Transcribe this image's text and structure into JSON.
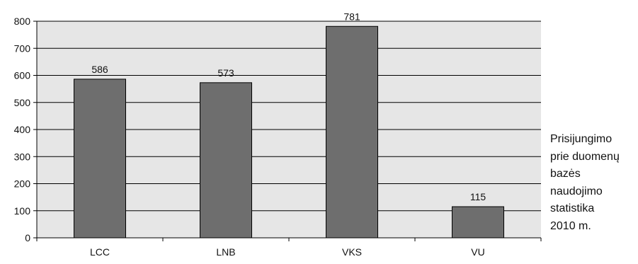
{
  "chart_data": {
    "type": "bar",
    "categories": [
      "LCC",
      "LNB",
      "VKS",
      "VU"
    ],
    "values": [
      586,
      573,
      781,
      115
    ],
    "data_labels": [
      "586",
      "573",
      "781",
      "115"
    ],
    "ylim": [
      0,
      800
    ],
    "yticks": [
      "0",
      "100",
      "200",
      "300",
      "400",
      "500",
      "600",
      "700",
      "800"
    ],
    "grid": true,
    "legend_placement": "right",
    "legend_lines": [
      "Prisijungimo",
      "prie duomenų",
      "bazės",
      "naudojimo",
      "statistika",
      "2010 m."
    ],
    "colors": {
      "plot_background": "#e6e6e6",
      "bar_fill": "#6e6e6e",
      "bar_stroke": "#000000",
      "gridline": "#000000"
    }
  }
}
